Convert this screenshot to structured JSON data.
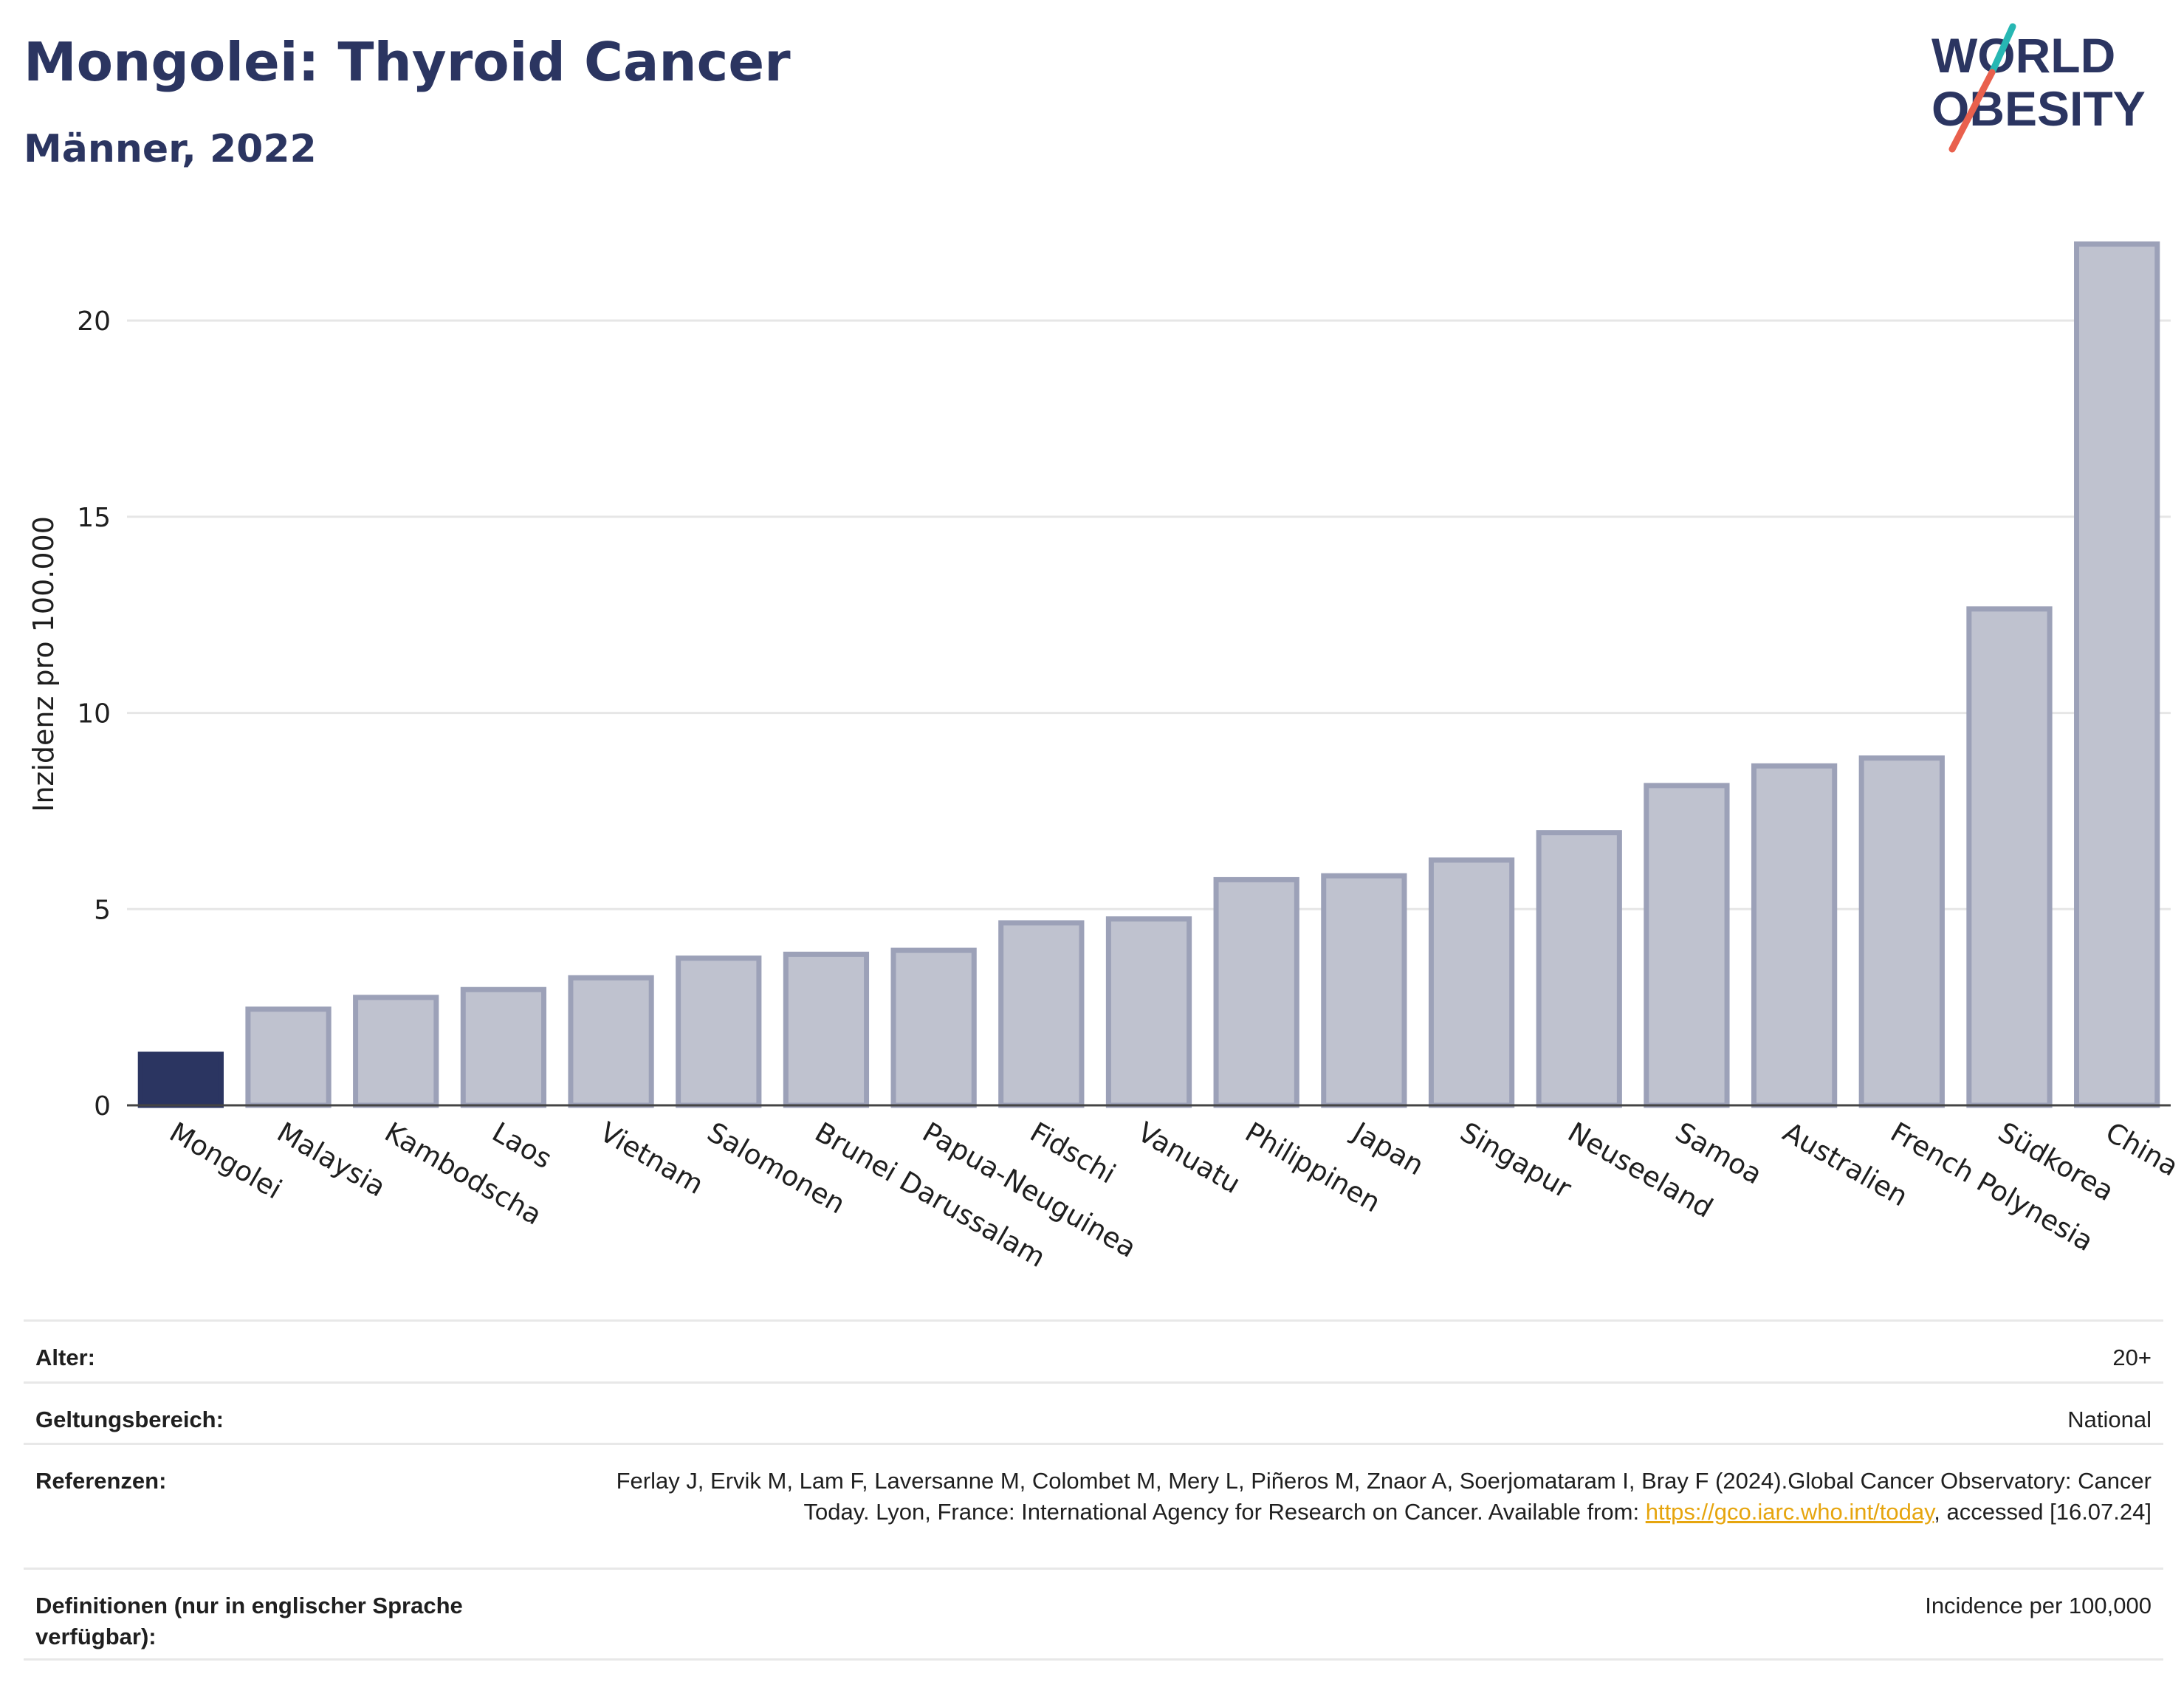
{
  "header": {
    "title": "Mongolei: Thyroid Cancer",
    "subtitle": "Männer, 2022"
  },
  "logo": {
    "line1": "WORLD",
    "line2": "OBESITY",
    "colors": {
      "text": "#2b3561",
      "slash_teal": "#27b7b3",
      "slash_red": "#e9604d"
    }
  },
  "colors": {
    "highlight_bar": "#2b3561",
    "bar_fill": "#bfc2cf",
    "bar_stroke": "#9ca1b8",
    "grid": "#e6e6e6",
    "axis": "#444444",
    "link": "#e6a50e"
  },
  "chart_data": {
    "type": "bar",
    "ylabel": "Inzidenz pro 100.000",
    "xlabel": "",
    "ylim": [
      0,
      22.6
    ],
    "yticks": [
      0,
      5,
      10,
      15,
      20
    ],
    "grid": true,
    "highlight": "Mongolei",
    "categories": [
      "Mongolei",
      "Malaysia",
      "Kambodscha",
      "Laos",
      "Vietnam",
      "Salomonen",
      "Brunei Darussalam",
      "Papua-Neuguinea",
      "Fidschi",
      "Vanuatu",
      "Philippinen",
      "Japan",
      "Singapur",
      "Neuseeland",
      "Samoa",
      "Australien",
      "French Polynesia",
      "Südkorea",
      "China"
    ],
    "values": [
      1.3,
      2.45,
      2.75,
      2.95,
      3.25,
      3.75,
      3.85,
      3.95,
      4.65,
      4.75,
      5.75,
      5.85,
      6.25,
      6.95,
      8.15,
      8.65,
      8.85,
      12.65,
      21.95
    ]
  },
  "meta": {
    "rows": [
      {
        "label": "Alter:",
        "value": "20+"
      },
      {
        "label": "Geltungsbereich:",
        "value": "National"
      },
      {
        "label": "Referenzen:",
        "value_pre": "Ferlay J, Ervik M, Lam F, Laversanne M, Colombet M, Mery L, Piñeros M, Znaor A, Soerjomataram I, Bray F (2024).Global Cancer Observatory: Cancer Today. Lyon, France: International Agency for Research on Cancer. Available from: ",
        "link": "https://gco.iarc.who.int/today",
        "value_post": ", accessed [16.07.24]"
      },
      {
        "label": "Definitionen (nur in englischer Sprache verfügbar):",
        "value": "Incidence per 100,000"
      }
    ]
  }
}
